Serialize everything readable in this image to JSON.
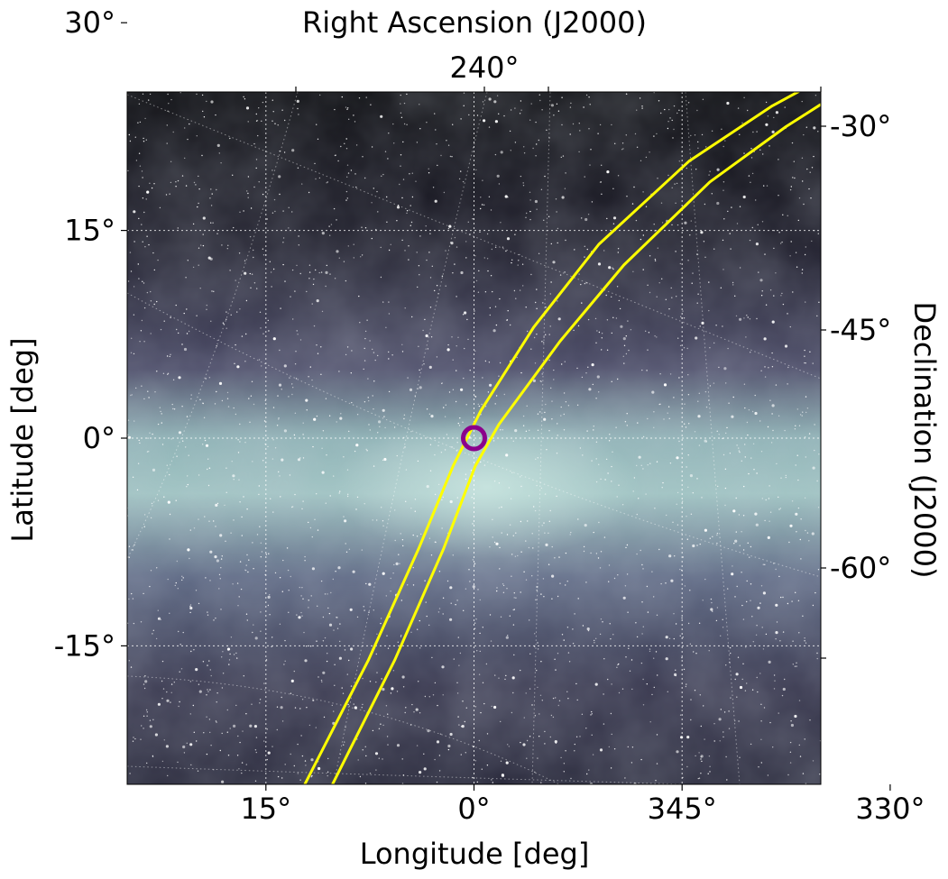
{
  "chart_data": {
    "type": "scatter",
    "title": "",
    "xlabel": "Longitude [deg]",
    "ylabel": "Latitude [deg]",
    "top_axis_label": "Right Ascension (J2000)",
    "right_axis_label": "Declination (J2000)",
    "xlim": [
      25,
      -25
    ],
    "ylim": [
      -25,
      25
    ],
    "x_ticks": [
      15,
      0,
      345,
      330
    ],
    "x_tick_labels": [
      "15°",
      "0°",
      "345°",
      "330°"
    ],
    "y_ticks": [
      30,
      15,
      0,
      -15
    ],
    "y_tick_labels": [
      "30°",
      "15°",
      "0°",
      "-15°"
    ],
    "top_tick_labels": [
      "240°"
    ],
    "right_tick_labels": [
      "-30°",
      "-45°",
      "-60°"
    ],
    "grid": true,
    "background": "all-sky star map of the Galactic plane",
    "marker": {
      "x": 0,
      "y": 0,
      "shape": "circle",
      "color": "#8b008b"
    },
    "series": [
      {
        "color": "#ffff00",
        "points": [
          [
            12.2,
            -25
          ],
          [
            7.6,
            -16
          ],
          [
            4.0,
            -8
          ],
          [
            1.5,
            -2
          ],
          [
            -0.5,
            2
          ],
          [
            -4.3,
            8
          ],
          [
            -9.0,
            14
          ],
          [
            -15.5,
            20
          ],
          [
            -21.5,
            24
          ],
          [
            -25,
            25.9
          ]
        ]
      },
      {
        "color": "#ffff00",
        "points": [
          [
            10.2,
            -25
          ],
          [
            5.7,
            -16
          ],
          [
            2.2,
            -8
          ],
          [
            -0.1,
            -2
          ],
          [
            -1.8,
            1
          ],
          [
            -6.2,
            7
          ],
          [
            -10.8,
            12.5
          ],
          [
            -17.0,
            18.5
          ],
          [
            -22.5,
            22.5
          ],
          [
            -25,
            24.1
          ]
        ]
      }
    ],
    "colors": {
      "curve": "#ffff00",
      "marker": "#8b008b",
      "grid": "#ffffff",
      "map_dark": "#0a0a10",
      "map_band": "#a8c8c8"
    }
  }
}
